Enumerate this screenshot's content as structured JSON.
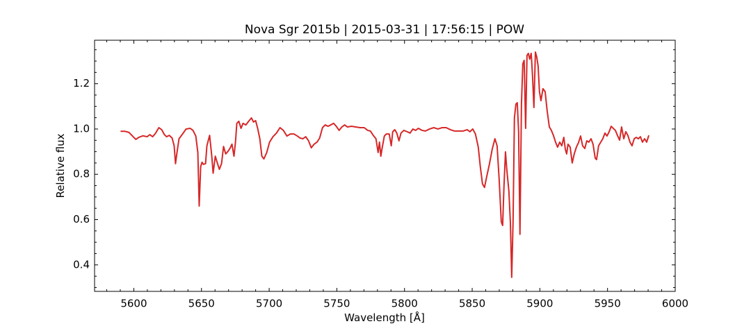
{
  "chart_data": {
    "type": "line",
    "title": "Nova Sgr 2015b | 2015-03-31 | 17:56:15 | POW",
    "x_label": "Wavelength [Å]",
    "y_label": "Relative flux",
    "xlim": [
      5571,
      6000
    ],
    "ylim": [
      0.283,
      1.392
    ],
    "xticks": [
      5600,
      5650,
      5700,
      5750,
      5800,
      5850,
      5900,
      5950,
      6000
    ],
    "yticks": [
      0.4,
      0.6,
      0.8,
      {
        "value": 1,
        "label": "1.0"
      },
      1.2
    ],
    "xminorticks": [
      5580,
      5590,
      5610,
      5620,
      5630,
      5640,
      5660,
      5670,
      5680,
      5690,
      5710,
      5720,
      5730,
      5740,
      5760,
      5770,
      5780,
      5790,
      5810,
      5820,
      5830,
      5840,
      5860,
      5870,
      5880,
      5890,
      5910,
      5920,
      5930,
      5940,
      5960,
      5970,
      5980,
      5990
    ],
    "yminorticks": [
      0.3,
      0.35,
      0.45,
      0.5,
      0.55,
      0.65,
      0.7,
      0.75,
      0.85,
      0.9,
      0.95,
      1.05,
      1.1,
      1.15,
      1.25,
      1.3,
      1.35
    ],
    "series": [
      {
        "color": "#d62728",
        "x": [
          5590.2,
          5593.3,
          5596.4,
          5599.5,
          5601.5,
          5603.6,
          5606.7,
          5609.8,
          5611.8,
          5613.9,
          5615.9,
          5618.5,
          5620.6,
          5622.6,
          5624.2,
          5626.2,
          5628.3,
          5629.8,
          5630.8,
          5631.9,
          5633.4,
          5636,
          5638.6,
          5641.6,
          5643.7,
          5645.8,
          5647.3,
          5648.3,
          5649.4,
          5650.4,
          5651.4,
          5653,
          5654,
          5656,
          5657.6,
          5658.6,
          5660.2,
          5661.7,
          5663.2,
          5664.8,
          5666.3,
          5667.9,
          5669.4,
          5671,
          5672.5,
          5674,
          5675.1,
          5676.1,
          5677.6,
          5679.2,
          5680.7,
          5682.8,
          5684.8,
          5686.9,
          5688.4,
          5690,
          5691.5,
          5693.1,
          5694.6,
          5696.1,
          5698.2,
          5700.3,
          5702.8,
          5705.4,
          5708,
          5710.5,
          5713.1,
          5715.7,
          5718.3,
          5720.8,
          5722.9,
          5725,
          5727,
          5729.1,
          5731.1,
          5733.2,
          5735.3,
          5737.3,
          5739.4,
          5741.4,
          5743.5,
          5745.5,
          5747.6,
          5749.6,
          5751.7,
          5753.7,
          5755.8,
          5757.8,
          5760.9,
          5764,
          5767.1,
          5770.2,
          5772.8,
          5774.8,
          5776.9,
          5778.9,
          5780.5,
          5781.5,
          5782.5,
          5783.5,
          5785.1,
          5786.6,
          5788.7,
          5790.2,
          5791.3,
          5792.8,
          5794.3,
          5795.9,
          5797.4,
          5799.5,
          5802,
          5804.1,
          5806.2,
          5808.2,
          5810.3,
          5812.9,
          5815.4,
          5818.5,
          5821.6,
          5824.7,
          5827.8,
          5830.8,
          5833.9,
          5837,
          5840.1,
          5843.2,
          5846.3,
          5848.3,
          5850.4,
          5852.4,
          5854.5,
          5856,
          5857.6,
          5859.1,
          5860.7,
          5862.7,
          5864.8,
          5866.8,
          5868.4,
          5869.9,
          5871.5,
          5872.5,
          5873.5,
          5874.6,
          5875.6,
          5877.1,
          5878.2,
          5879.2,
          5880.2,
          5881.2,
          5882.3,
          5883.3,
          5884.3,
          5885.3,
          5886.4,
          5887.4,
          5888.4,
          5889.5,
          5890.5,
          5891.5,
          5892.5,
          5893.6,
          5894.6,
          5895.6,
          5896.7,
          5897.7,
          5898.7,
          5899.7,
          5900.8,
          5902.3,
          5903.9,
          5905.4,
          5907,
          5908.5,
          5910,
          5911.6,
          5913.1,
          5914.7,
          5916.2,
          5917.7,
          5918.8,
          5919.8,
          5920.8,
          5922.4,
          5923.9,
          5925.4,
          5927,
          5928.5,
          5930.1,
          5931.6,
          5933.2,
          5934.7,
          5936.2,
          5937.8,
          5939.3,
          5940.9,
          5941.9,
          5943.4,
          5945,
          5946.5,
          5948.1,
          5949.6,
          5951.2,
          5952.7,
          5954.2,
          5955.8,
          5957.3,
          5958.9,
          5960.4,
          5962,
          5963.5,
          5965,
          5966.6,
          5968.1,
          5969.7,
          5971.2,
          5972.8,
          5974.3,
          5975.8,
          5977.4,
          5978.9,
          5980.5
        ],
        "values": [
          0.99,
          0.99,
          0.985,
          0.966,
          0.954,
          0.963,
          0.97,
          0.966,
          0.975,
          0.966,
          0.98,
          1.006,
          0.997,
          0.975,
          0.966,
          0.972,
          0.96,
          0.926,
          0.847,
          0.896,
          0.957,
          0.978,
          1.0,
          1.003,
          0.994,
          0.969,
          0.896,
          0.66,
          0.834,
          0.853,
          0.844,
          0.847,
          0.926,
          0.972,
          0.88,
          0.805,
          0.88,
          0.85,
          0.822,
          0.847,
          0.923,
          0.89,
          0.9,
          0.914,
          0.933,
          0.88,
          0.942,
          1.025,
          1.034,
          1.003,
          1.025,
          1.018,
          1.034,
          1.049,
          1.031,
          1.037,
          1.003,
          0.957,
          0.88,
          0.868,
          0.896,
          0.942,
          0.966,
          0.982,
          1.006,
          0.994,
          0.969,
          0.978,
          0.978,
          0.969,
          0.96,
          0.957,
          0.966,
          0.948,
          0.917,
          0.933,
          0.942,
          0.96,
          1.006,
          1.018,
          1.012,
          1.018,
          1.025,
          1.012,
          0.994,
          1.009,
          1.018,
          1.009,
          1.012,
          1.009,
          1.006,
          1.006,
          0.994,
          0.991,
          0.972,
          0.957,
          0.896,
          0.942,
          0.88,
          0.917,
          0.969,
          0.978,
          0.978,
          0.926,
          0.988,
          0.997,
          0.982,
          0.948,
          0.982,
          0.994,
          0.988,
          0.982,
          1.0,
          0.994,
          1.003,
          0.994,
          0.991,
          1.0,
          1.006,
          1.0,
          1.006,
          1.006,
          0.997,
          0.991,
          0.991,
          0.991,
          0.997,
          0.988,
          1.0,
          0.978,
          0.92,
          0.834,
          0.758,
          0.742,
          0.789,
          0.844,
          0.911,
          0.957,
          0.926,
          0.78,
          0.59,
          0.574,
          0.748,
          0.899,
          0.819,
          0.727,
          0.59,
          0.345,
          0.59,
          1.049,
          1.11,
          1.116,
          0.988,
          0.535,
          1.11,
          1.288,
          1.303,
          1.003,
          1.325,
          1.334,
          1.309,
          1.334,
          1.233,
          1.095,
          1.34,
          1.318,
          1.279,
          1.165,
          1.125,
          1.178,
          1.165,
          1.08,
          1.009,
          0.994,
          0.972,
          0.942,
          0.92,
          0.942,
          0.926,
          0.963,
          0.911,
          0.89,
          0.933,
          0.92,
          0.85,
          0.89,
          0.92,
          0.939,
          0.969,
          0.926,
          0.914,
          0.948,
          0.942,
          0.957,
          0.933,
          0.871,
          0.865,
          0.926,
          0.942,
          0.957,
          0.982,
          0.969,
          0.988,
          1.012,
          1.003,
          0.994,
          0.972,
          0.951,
          1.009,
          0.957,
          0.988,
          0.972,
          0.942,
          0.926,
          0.957,
          0.963,
          0.957,
          0.966,
          0.942,
          0.957,
          0.942,
          0.972
        ]
      }
    ]
  }
}
